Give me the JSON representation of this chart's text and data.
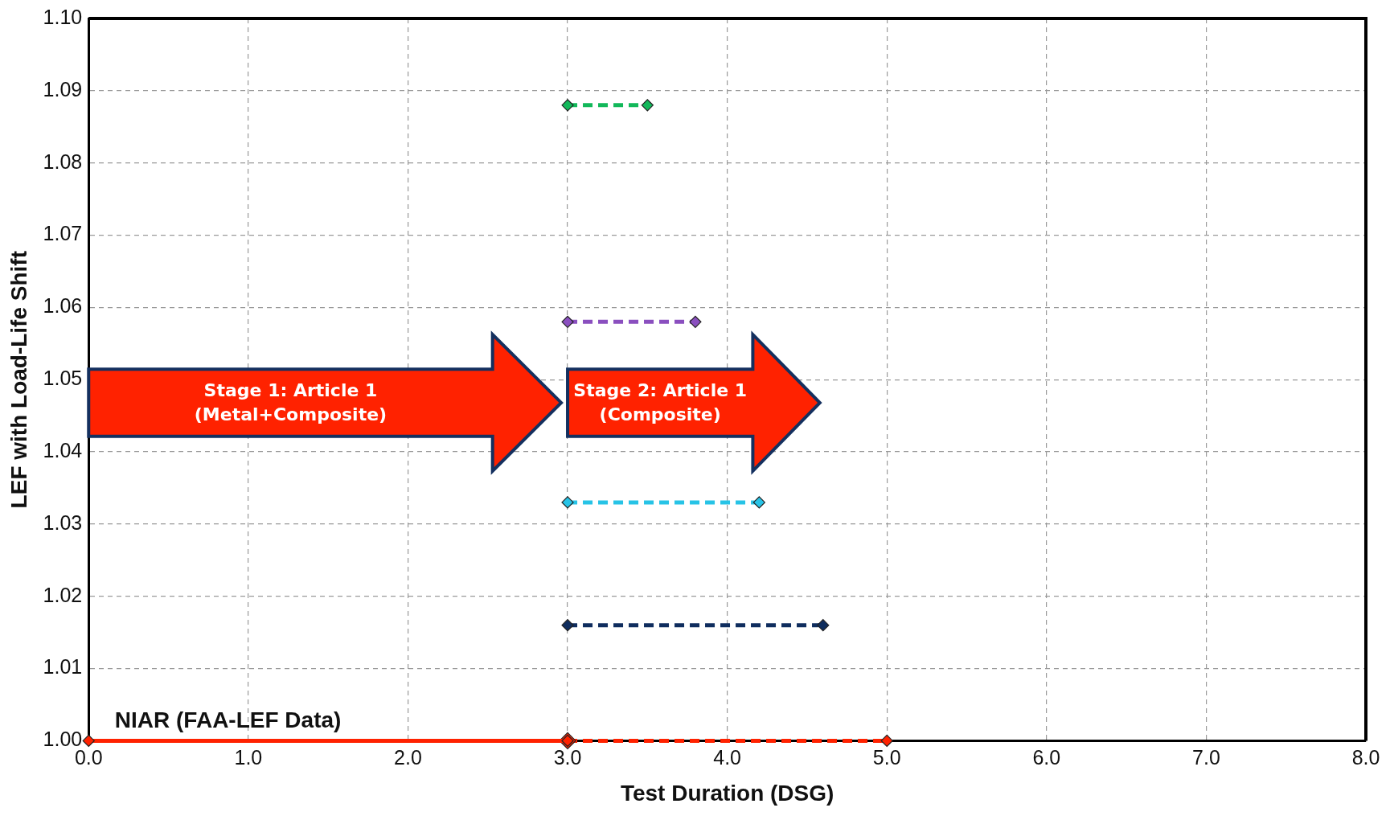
{
  "chart_data": {
    "type": "line",
    "xlabel": "Test Duration (DSG)",
    "ylabel": "LEF with Load-Life Shift",
    "xlim": [
      0,
      8
    ],
    "ylim": [
      1.0,
      1.1
    ],
    "xticks": [
      {
        "value": 0,
        "label": "0.0"
      },
      {
        "value": 1,
        "label": "1.0"
      },
      {
        "value": 2,
        "label": "2.0"
      },
      {
        "value": 3,
        "label": "3.0"
      },
      {
        "value": 4,
        "label": "4.0"
      },
      {
        "value": 5,
        "label": "5.0"
      },
      {
        "value": 6,
        "label": "6.0"
      },
      {
        "value": 7,
        "label": "7.0"
      },
      {
        "value": 8,
        "label": "8.0"
      }
    ],
    "yticks": [
      {
        "value": 1.0,
        "label": "1.00"
      },
      1.01,
      1.02,
      1.03,
      1.04,
      1.05,
      1.06,
      1.07,
      1.08,
      1.09,
      {
        "value": 1.1,
        "label": "1.10"
      }
    ],
    "grid": true,
    "legend": false,
    "marker": "diamond",
    "series": [
      {
        "color": "#ff2200",
        "x": [
          0,
          3
        ],
        "values": [
          1.0,
          1.0
        ],
        "line_style": "solid"
      },
      {
        "color": "#ff2200",
        "x": [
          3,
          5
        ],
        "values": [
          1.0,
          1.0
        ],
        "line_style": "dashed"
      },
      {
        "color": "#0f2d5e",
        "x": [
          3,
          4.6
        ],
        "values": [
          1.016,
          1.016
        ],
        "line_style": "dashed"
      },
      {
        "color": "#27c3e6",
        "x": [
          3,
          4.2
        ],
        "values": [
          1.033,
          1.033
        ],
        "line_style": "dashed"
      },
      {
        "color": "#8a4fbf",
        "x": [
          3,
          3.8
        ],
        "values": [
          1.058,
          1.058
        ],
        "line_style": "dashed"
      },
      {
        "color": "#12b85a",
        "x": [
          3,
          3.5
        ],
        "values": [
          1.088,
          1.088
        ],
        "line_style": "dashed"
      }
    ],
    "annotations": [
      "NIAR (FAA-LEF Data)",
      "Stage 1: Article 1\n(Metal+Composite)",
      "Stage 2: Article 1\n(Composite)"
    ]
  }
}
